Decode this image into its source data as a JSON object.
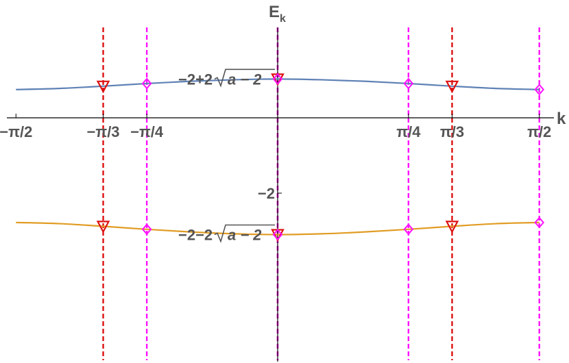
{
  "chart_data": {
    "type": "line",
    "xlabel": "k",
    "ylabel_main": "E",
    "ylabel_sub": "k",
    "xlim": [
      -1.62,
      1.62
    ],
    "ylim": [
      -3.6,
      1.35
    ],
    "x_ticks": [
      {
        "value": -1.5708,
        "label": "−π/2"
      },
      {
        "value": -1.0472,
        "label": "−π/3"
      },
      {
        "value": -0.7854,
        "label": "−π/4"
      },
      {
        "value": 0.7854,
        "label": "π/4"
      },
      {
        "value": 1.0472,
        "label": "π/3"
      },
      {
        "value": 1.5708,
        "label": "π/2"
      }
    ],
    "y_ticks": [
      {
        "value": -2,
        "label": "−2"
      }
    ],
    "annotations": [
      {
        "y": 1.03,
        "prefix": "−2+2",
        "radicand": "a − 2"
      },
      {
        "y": -3.1,
        "prefix": "−2−2",
        "radicand": "a − 2"
      }
    ],
    "series": [
      {
        "color": "#5e81b5",
        "points": [
          [
            -1.5708,
            0.75
          ],
          [
            -1.309,
            0.78
          ],
          [
            -1.0472,
            0.84
          ],
          [
            -0.7854,
            0.91
          ],
          [
            -0.5236,
            0.97
          ],
          [
            -0.2618,
            1.01
          ],
          [
            0,
            1.03
          ],
          [
            0.2618,
            1.01
          ],
          [
            0.5236,
            0.97
          ],
          [
            0.7854,
            0.91
          ],
          [
            1.0472,
            0.84
          ],
          [
            1.309,
            0.78
          ],
          [
            1.5708,
            0.75
          ]
        ]
      },
      {
        "color": "#e19c24",
        "points": [
          [
            -1.5708,
            -2.78
          ],
          [
            -1.309,
            -2.81
          ],
          [
            -1.0472,
            -2.88
          ],
          [
            -0.7854,
            -2.96
          ],
          [
            -0.5236,
            -3.03
          ],
          [
            -0.2618,
            -3.08
          ],
          [
            0,
            -3.1
          ],
          [
            0.2618,
            -3.08
          ],
          [
            0.5236,
            -3.03
          ],
          [
            0.7854,
            -2.96
          ],
          [
            1.0472,
            -2.88
          ],
          [
            1.309,
            -2.81
          ],
          [
            1.5708,
            -2.78
          ]
        ]
      }
    ],
    "vlines": [
      {
        "x": -1.0472,
        "color": "#dd1111"
      },
      {
        "x": -0.7854,
        "color": "#ff11ff"
      },
      {
        "x": 0,
        "color": "#dd1111"
      },
      {
        "x": 0,
        "color": "#ff11ff"
      },
      {
        "x": 0.7854,
        "color": "#ff11ff"
      },
      {
        "x": 1.0472,
        "color": "#dd1111"
      },
      {
        "x": 1.5708,
        "color": "#ff11ff"
      }
    ],
    "markers": [
      {
        "x": -1.0472,
        "y": 0.84,
        "shape": "triangle-down",
        "color": "#dd1111"
      },
      {
        "x": -1.0472,
        "y": -2.88,
        "shape": "triangle-down",
        "color": "#dd1111"
      },
      {
        "x": 0,
        "y": 1.03,
        "shape": "triangle-down",
        "color": "#dd1111"
      },
      {
        "x": 0,
        "y": -3.1,
        "shape": "triangle-down",
        "color": "#dd1111"
      },
      {
        "x": 1.0472,
        "y": 0.84,
        "shape": "triangle-down",
        "color": "#dd1111"
      },
      {
        "x": 1.0472,
        "y": -2.88,
        "shape": "triangle-down",
        "color": "#dd1111"
      },
      {
        "x": -0.7854,
        "y": 0.91,
        "shape": "diamond",
        "color": "#ff11ff"
      },
      {
        "x": -0.7854,
        "y": -2.96,
        "shape": "diamond",
        "color": "#ff11ff"
      },
      {
        "x": 0,
        "y": 1.03,
        "shape": "diamond",
        "color": "#ff11ff"
      },
      {
        "x": 0,
        "y": -3.1,
        "shape": "diamond",
        "color": "#ff11ff"
      },
      {
        "x": 0.7854,
        "y": 0.91,
        "shape": "diamond",
        "color": "#ff11ff"
      },
      {
        "x": 0.7854,
        "y": -2.96,
        "shape": "diamond",
        "color": "#ff11ff"
      },
      {
        "x": 1.5708,
        "y": 0.75,
        "shape": "diamond",
        "color": "#ff11ff"
      },
      {
        "x": 1.5708,
        "y": -2.78,
        "shape": "diamond",
        "color": "#ff11ff"
      }
    ]
  }
}
